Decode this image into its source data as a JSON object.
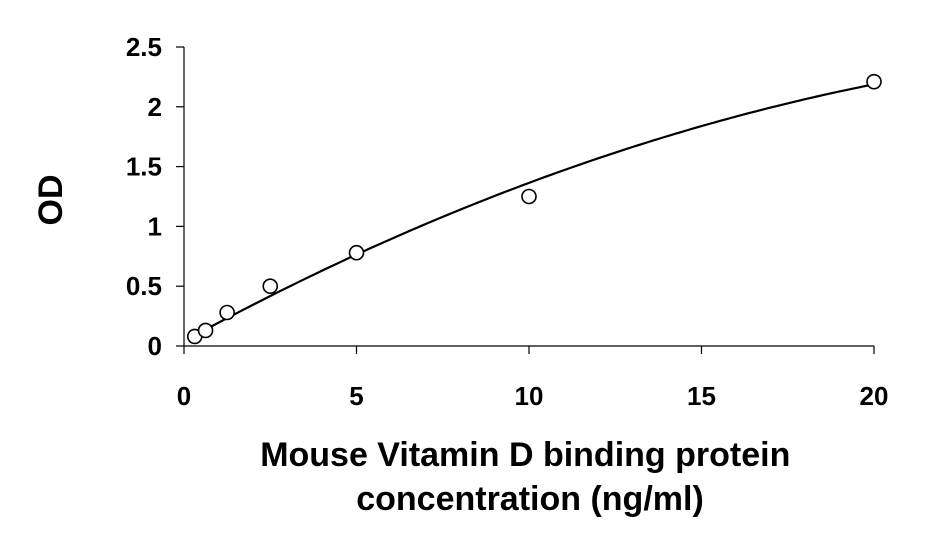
{
  "chart_data": {
    "type": "scatter",
    "xlabel_lines": [
      "Mouse Vitamin D binding protein",
      "concentration (ng/ml)"
    ],
    "ylabel": "OD",
    "xlim": [
      0,
      20
    ],
    "ylim": [
      0,
      2.5
    ],
    "x_ticks": [
      0,
      5,
      10,
      15,
      20
    ],
    "x_tick_labels": [
      "0",
      "5",
      "10",
      "15",
      "20"
    ],
    "y_ticks": [
      0,
      0.5,
      1,
      1.5,
      2,
      2.5
    ],
    "y_tick_labels": [
      "0",
      "0.5",
      "1",
      "1.5",
      "2",
      "2.5"
    ],
    "grid": false,
    "legend": "none",
    "series": [
      {
        "marker": "open-circle",
        "x": [
          0.312,
          0.625,
          1.25,
          2.5,
          5,
          10,
          20
        ],
        "y": [
          0.08,
          0.13,
          0.28,
          0.5,
          0.78,
          1.25,
          2.21
        ]
      }
    ],
    "trendline": {
      "type": "polynomial",
      "coefficients": [
        0.04,
        0.1574,
        -0.0025
      ],
      "x_range": [
        0.312,
        20
      ]
    }
  }
}
